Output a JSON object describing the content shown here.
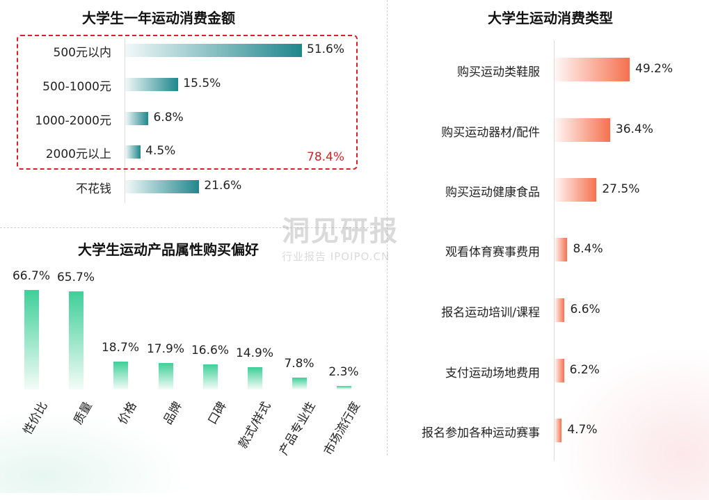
{
  "chart_data": [
    {
      "type": "bar",
      "orientation": "horizontal",
      "title": "大学生一年运动消费金额",
      "categories": [
        "500元以内",
        "500-1000元",
        "1000-2000元",
        "2000元以上",
        "不花钱"
      ],
      "values": [
        51.6,
        15.5,
        6.8,
        4.5,
        21.6
      ],
      "value_labels": [
        "51.6%",
        "15.5%",
        "6.8%",
        "4.5%",
        "21.6%"
      ],
      "annotation": "78.4%",
      "colors": {
        "bar": "#1f878c",
        "highlight": "#d42026"
      }
    },
    {
      "type": "bar",
      "orientation": "horizontal",
      "title": "大学生运动消费类型",
      "categories": [
        "购买运动类鞋服",
        "购买运动器材/配件",
        "购买运动健康食品",
        "观看体育赛事费用",
        "报名运动培训/课程",
        "支付运动场地费用",
        "报名参加各种运动赛事"
      ],
      "values": [
        49.2,
        36.4,
        27.5,
        8.4,
        6.6,
        6.2,
        4.7
      ],
      "value_labels": [
        "49.2%",
        "36.4%",
        "27.5%",
        "8.4%",
        "6.6%",
        "6.2%",
        "4.7%"
      ],
      "colors": {
        "bar": "#f5714f"
      }
    },
    {
      "type": "bar",
      "orientation": "vertical",
      "title": "大学生运动产品属性购买偏好",
      "categories": [
        "性价比",
        "质量",
        "价格",
        "品牌",
        "口碑",
        "款式/样式",
        "产品专业性",
        "市场流行度"
      ],
      "values": [
        66.7,
        65.7,
        18.7,
        17.9,
        16.6,
        14.9,
        7.8,
        2.3
      ],
      "value_labels": [
        "66.7%",
        "65.7%",
        "18.7%",
        "17.9%",
        "16.6%",
        "14.9%",
        "7.8%",
        "2.3%"
      ],
      "colors": {
        "bar": "#3ecf98"
      }
    }
  ],
  "watermark": {
    "main": "洞见研报",
    "sub": "行业报告 IPOIPO.CN"
  }
}
